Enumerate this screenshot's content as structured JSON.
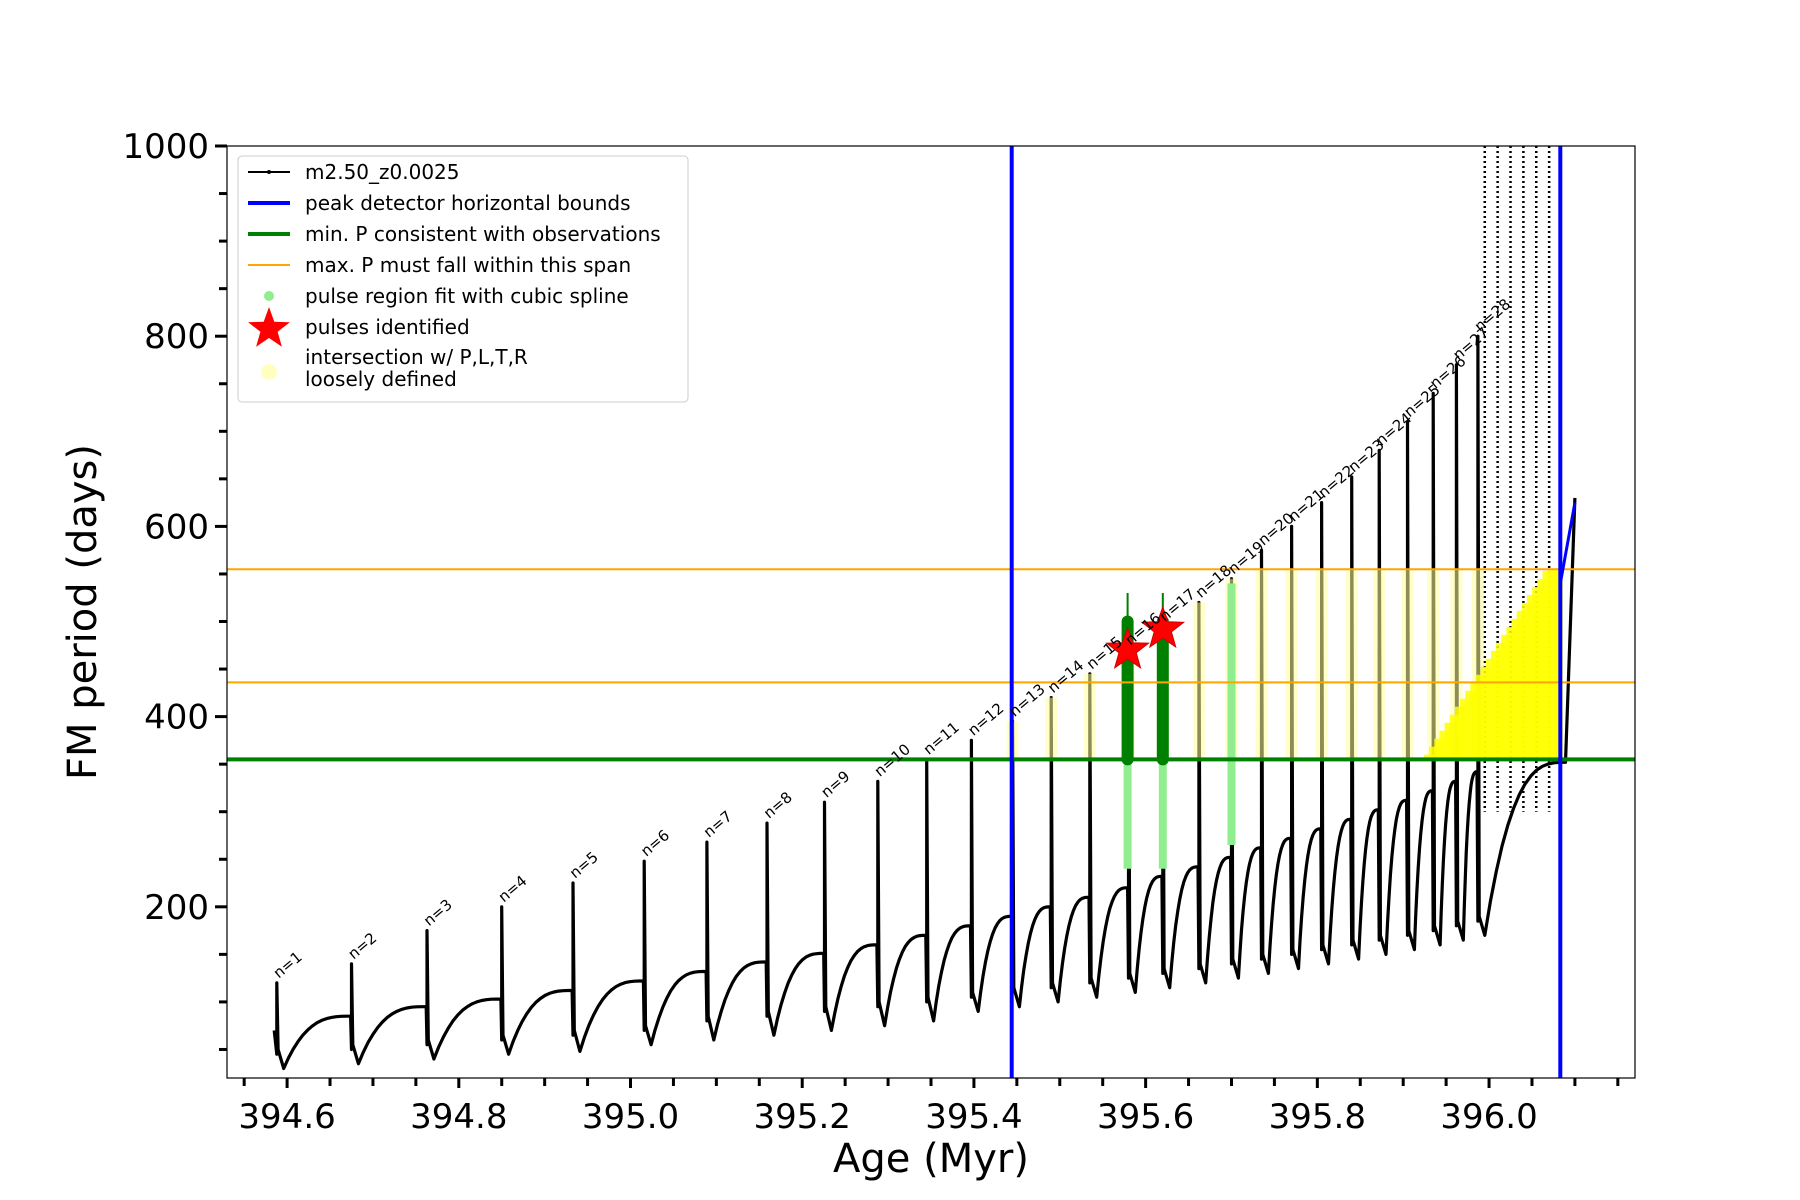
{
  "chart_data": {
    "type": "line",
    "xlabel": "Age (Myr)",
    "ylabel": "FM period (days)",
    "xlim": [
      394.53,
      396.17
    ],
    "ylim": [
      20,
      1000
    ],
    "xticks": [
      394.6,
      394.8,
      395.0,
      395.2,
      395.4,
      395.6,
      395.8,
      396.0
    ],
    "xtick_labels": [
      "394.6",
      "394.8",
      "395.0",
      "395.2",
      "395.4",
      "395.6",
      "395.8",
      "396.0"
    ],
    "yticks": [
      200,
      400,
      600,
      800,
      1000
    ],
    "ytick_labels": [
      "200",
      "400",
      "600",
      "800",
      "1000"
    ],
    "legend_position": "top-left",
    "legend": [
      {
        "label": "m2.50_z0.0025",
        "kind": "line-dots",
        "color": "#000000"
      },
      {
        "label": "peak detector horizontal bounds",
        "kind": "line",
        "color": "#0000ff"
      },
      {
        "label": "min. P consistent with observations",
        "kind": "line",
        "color": "#008000"
      },
      {
        "label": "max. P must fall within this span",
        "kind": "line",
        "color": "#ffa500"
      },
      {
        "label": "pulse region fit with cubic spline",
        "kind": "dot",
        "color": "#90ee90"
      },
      {
        "label": "pulses identified",
        "kind": "star",
        "color": "#ff0000"
      },
      {
        "label": "intersection w/ P,L,T,R\nloosely defined",
        "kind": "circle",
        "color": "#ffffc0"
      }
    ],
    "vertical_bounds": [
      395.444,
      396.083
    ],
    "min_period": 355,
    "max_period_span": [
      436,
      555
    ],
    "pulses": [
      {
        "label": "n=1",
        "age": 394.588,
        "peak": 120,
        "base": 45,
        "min": 30,
        "plateau": 85
      },
      {
        "label": "n=2",
        "age": 394.675,
        "peak": 140,
        "base": 50,
        "min": 35,
        "plateau": 95
      },
      {
        "label": "n=3",
        "age": 394.763,
        "peak": 175,
        "base": 55,
        "min": 40,
        "plateau": 103
      },
      {
        "label": "n=4",
        "age": 394.85,
        "peak": 200,
        "base": 60,
        "min": 45,
        "plateau": 112
      },
      {
        "label": "n=5",
        "age": 394.933,
        "peak": 225,
        "base": 65,
        "min": 48,
        "plateau": 122
      },
      {
        "label": "n=6",
        "age": 395.016,
        "peak": 248,
        "base": 70,
        "min": 55,
        "plateau": 132
      },
      {
        "label": "n=7",
        "age": 395.089,
        "peak": 268,
        "base": 80,
        "min": 60,
        "plateau": 142
      },
      {
        "label": "n=8",
        "age": 395.159,
        "peak": 288,
        "base": 85,
        "min": 65,
        "plateau": 151
      },
      {
        "label": "n=9",
        "age": 395.226,
        "peak": 310,
        "base": 90,
        "min": 70,
        "plateau": 160
      },
      {
        "label": "n=10",
        "age": 395.288,
        "peak": 332,
        "base": 95,
        "min": 75,
        "plateau": 170
      },
      {
        "label": "n=11",
        "age": 395.345,
        "peak": 355,
        "base": 100,
        "min": 80,
        "plateau": 180
      },
      {
        "label": "n=12",
        "age": 395.397,
        "peak": 375,
        "base": 105,
        "min": 90,
        "plateau": 190
      },
      {
        "label": "n=13",
        "age": 395.445,
        "peak": 395,
        "base": 110,
        "min": 95,
        "plateau": 200
      },
      {
        "label": "n=14",
        "age": 395.49,
        "peak": 420,
        "base": 115,
        "min": 100,
        "plateau": 210
      },
      {
        "label": "n=15",
        "age": 395.535,
        "peak": 445,
        "base": 120,
        "min": 105,
        "plateau": 220
      },
      {
        "label": "n=16",
        "age": 395.58,
        "peak": 470,
        "base": 125,
        "min": 110,
        "plateau": 232
      },
      {
        "label": "n=17",
        "age": 395.62,
        "peak": 495,
        "base": 130,
        "min": 115,
        "plateau": 242
      },
      {
        "label": "n=18",
        "age": 395.662,
        "peak": 520,
        "base": 135,
        "min": 120,
        "plateau": 252
      },
      {
        "label": "n=19",
        "age": 395.7,
        "peak": 545,
        "base": 140,
        "min": 125,
        "plateau": 262
      },
      {
        "label": "n=20",
        "age": 395.735,
        "peak": 575,
        "base": 145,
        "min": 130,
        "plateau": 272
      },
      {
        "label": "n=21",
        "age": 395.77,
        "peak": 600,
        "base": 150,
        "min": 135,
        "plateau": 282
      },
      {
        "label": "n=22",
        "age": 395.805,
        "peak": 625,
        "base": 155,
        "min": 140,
        "plateau": 292
      },
      {
        "label": "n=23",
        "age": 395.84,
        "peak": 652,
        "base": 160,
        "min": 145,
        "plateau": 302
      },
      {
        "label": "n=24",
        "age": 395.872,
        "peak": 680,
        "base": 165,
        "min": 150,
        "plateau": 312
      },
      {
        "label": "n=25",
        "age": 395.905,
        "peak": 710,
        "base": 170,
        "min": 155,
        "plateau": 322
      },
      {
        "label": "n=26",
        "age": 395.935,
        "peak": 740,
        "base": 175,
        "min": 160,
        "plateau": 332
      },
      {
        "label": "n=27",
        "age": 395.962,
        "peak": 770,
        "base": 180,
        "min": 165,
        "plateau": 342
      },
      {
        "label": "n=28",
        "age": 395.987,
        "peak": 800,
        "base": 185,
        "min": 170,
        "plateau": 352
      }
    ],
    "pulses_identified": [
      {
        "age": 395.579,
        "period": 470
      },
      {
        "age": 395.62,
        "period": 492
      }
    ]
  }
}
